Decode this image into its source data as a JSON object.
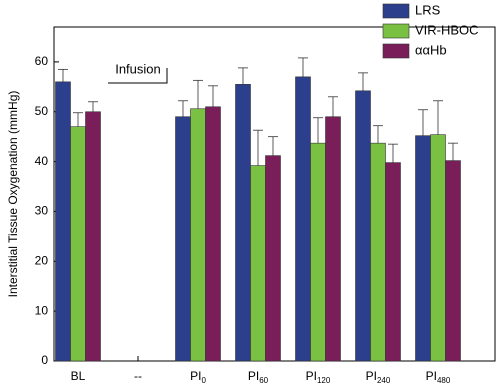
{
  "chart_data": {
    "type": "bar",
    "y_label": "Interstitial Tissue Oxygenation (mmHg)",
    "annotation": "Infusion",
    "categories": [
      "BL",
      "--",
      "PI",
      "PI",
      "PI",
      "PI",
      "PI"
    ],
    "category_subscripts": [
      null,
      null,
      "0",
      "60",
      "120",
      "240",
      "480"
    ],
    "series": [
      {
        "name": "LRS",
        "color": "#2b3f8c",
        "values": [
          56,
          null,
          49,
          55.5,
          57,
          54.2,
          45.2
        ],
        "errors": [
          2.5,
          null,
          3.2,
          3.3,
          3.8,
          3.6,
          5.2
        ]
      },
      {
        "name": "VIR-HBOC",
        "color": "#7ac143",
        "values": [
          47,
          null,
          50.6,
          39.2,
          43.7,
          43.7,
          45.4
        ],
        "errors": [
          2.8,
          null,
          5.7,
          7.1,
          5.1,
          3.5,
          6.8
        ]
      },
      {
        "name": "ααHb",
        "color": "#7a1e5a",
        "values": [
          50,
          null,
          51,
          41.2,
          49,
          39.8,
          40.2
        ],
        "errors": [
          2,
          null,
          4.2,
          3.8,
          4,
          3.7,
          3.5
        ]
      }
    ],
    "ylim": [
      0,
      67
    ],
    "yticks": [
      0,
      10,
      20,
      30,
      40,
      50,
      60
    ],
    "legend": "upper right"
  }
}
